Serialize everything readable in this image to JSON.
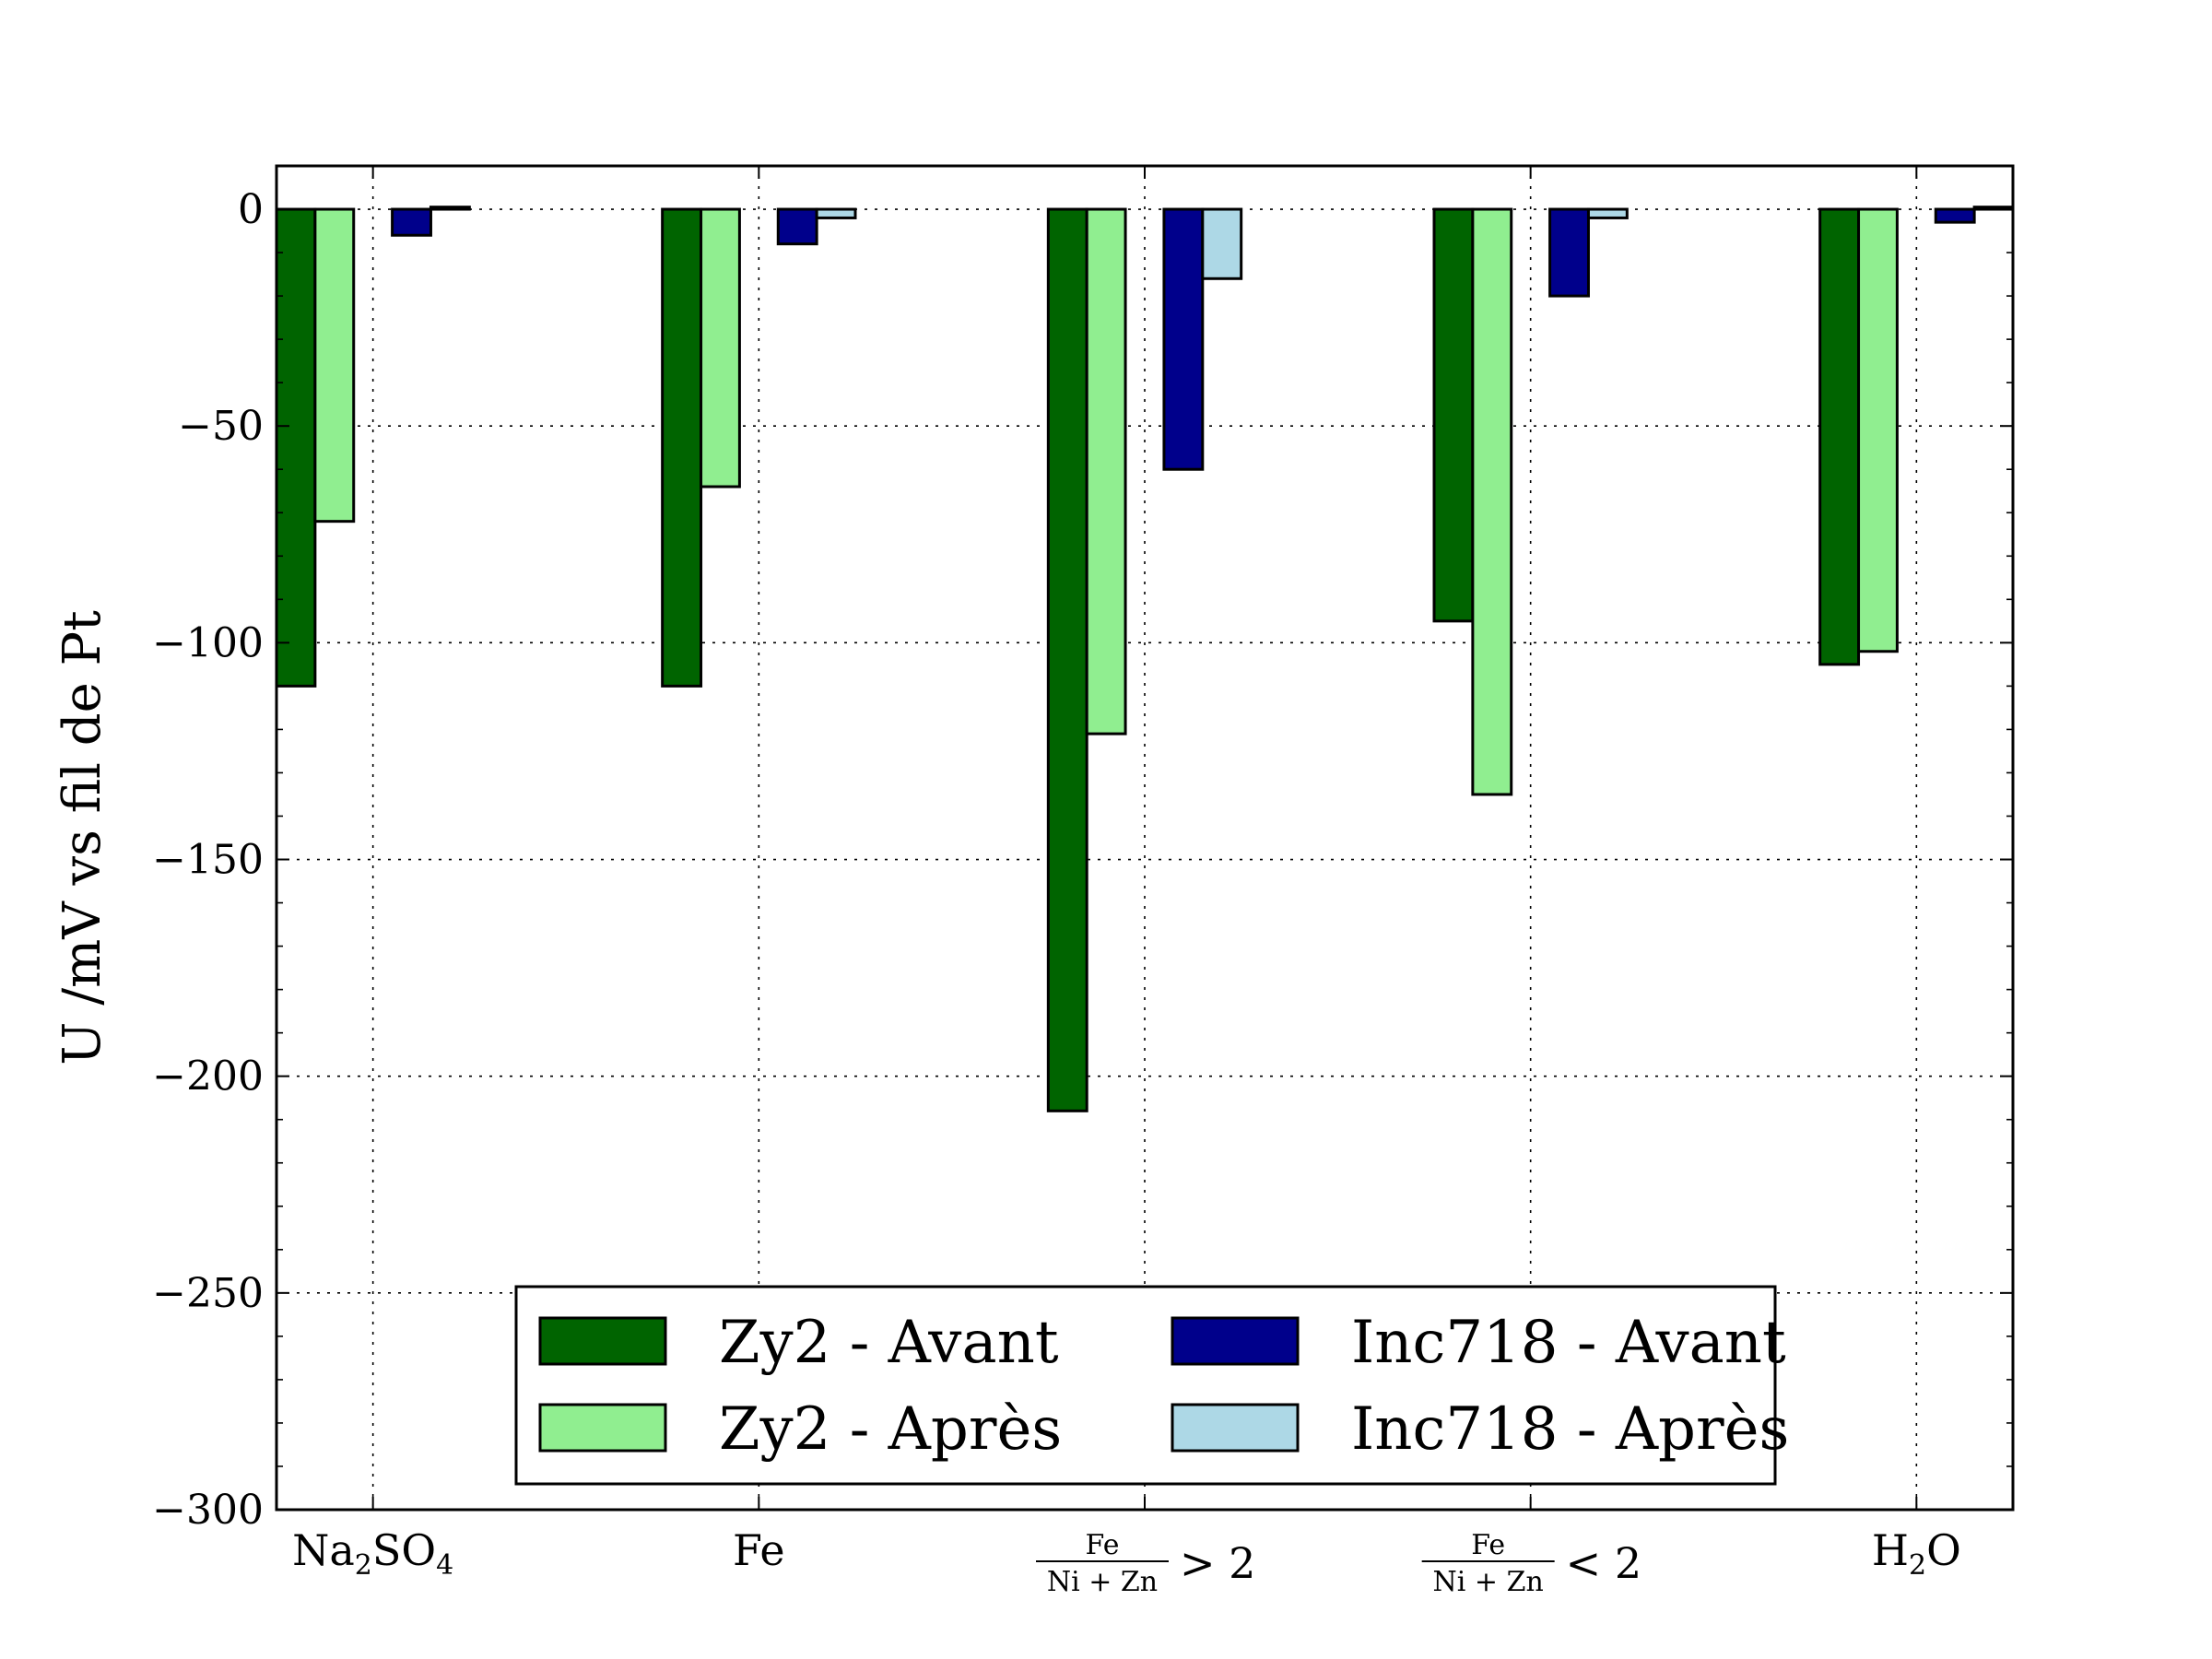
{
  "chart_data": {
    "type": "bar",
    "ylabel": "U /mV vs fil de Pt",
    "ylim": [
      -300,
      10
    ],
    "yticks": [
      0,
      -50,
      -100,
      -150,
      -200,
      -250,
      -300
    ],
    "ytick_labels": [
      "0",
      "−50",
      "−100",
      "−150",
      "−200",
      "−250",
      "−300"
    ],
    "grid": true,
    "legend_position": "lower-center",
    "categories": [
      {
        "label": "Na2SO4",
        "main": "Na",
        "sub1": "2",
        "mid": "SO",
        "sub2": "4"
      },
      {
        "label": "Fe",
        "main": "Fe"
      },
      {
        "label": "Fe/(Ni+Zn) > 2",
        "num": "Fe",
        "den": "Ni + Zn",
        "rel": "> 2"
      },
      {
        "label": "Fe/(Ni+Zn) < 2",
        "num": "Fe",
        "den": "Ni + Zn",
        "rel": "< 2"
      },
      {
        "label": "H2O",
        "main": "H",
        "sub1": "2",
        "mid": "O"
      }
    ],
    "series": [
      {
        "name": "Zy2 - Avant",
        "color": "#006400",
        "values": [
          -110,
          -110,
          -208,
          -95,
          -105
        ]
      },
      {
        "name": "Zy2 - Après",
        "color": "#90ee90",
        "values": [
          -72,
          -64,
          -121,
          -135,
          -102
        ]
      },
      {
        "name": "Inc718 - Avant",
        "color": "#00008b",
        "values": [
          -6,
          -8,
          -60,
          -20,
          -3
        ]
      },
      {
        "name": "Inc718 - Après",
        "color": "#add8e6",
        "values": [
          0.5,
          -2,
          -16,
          -2,
          0.5
        ]
      }
    ]
  }
}
